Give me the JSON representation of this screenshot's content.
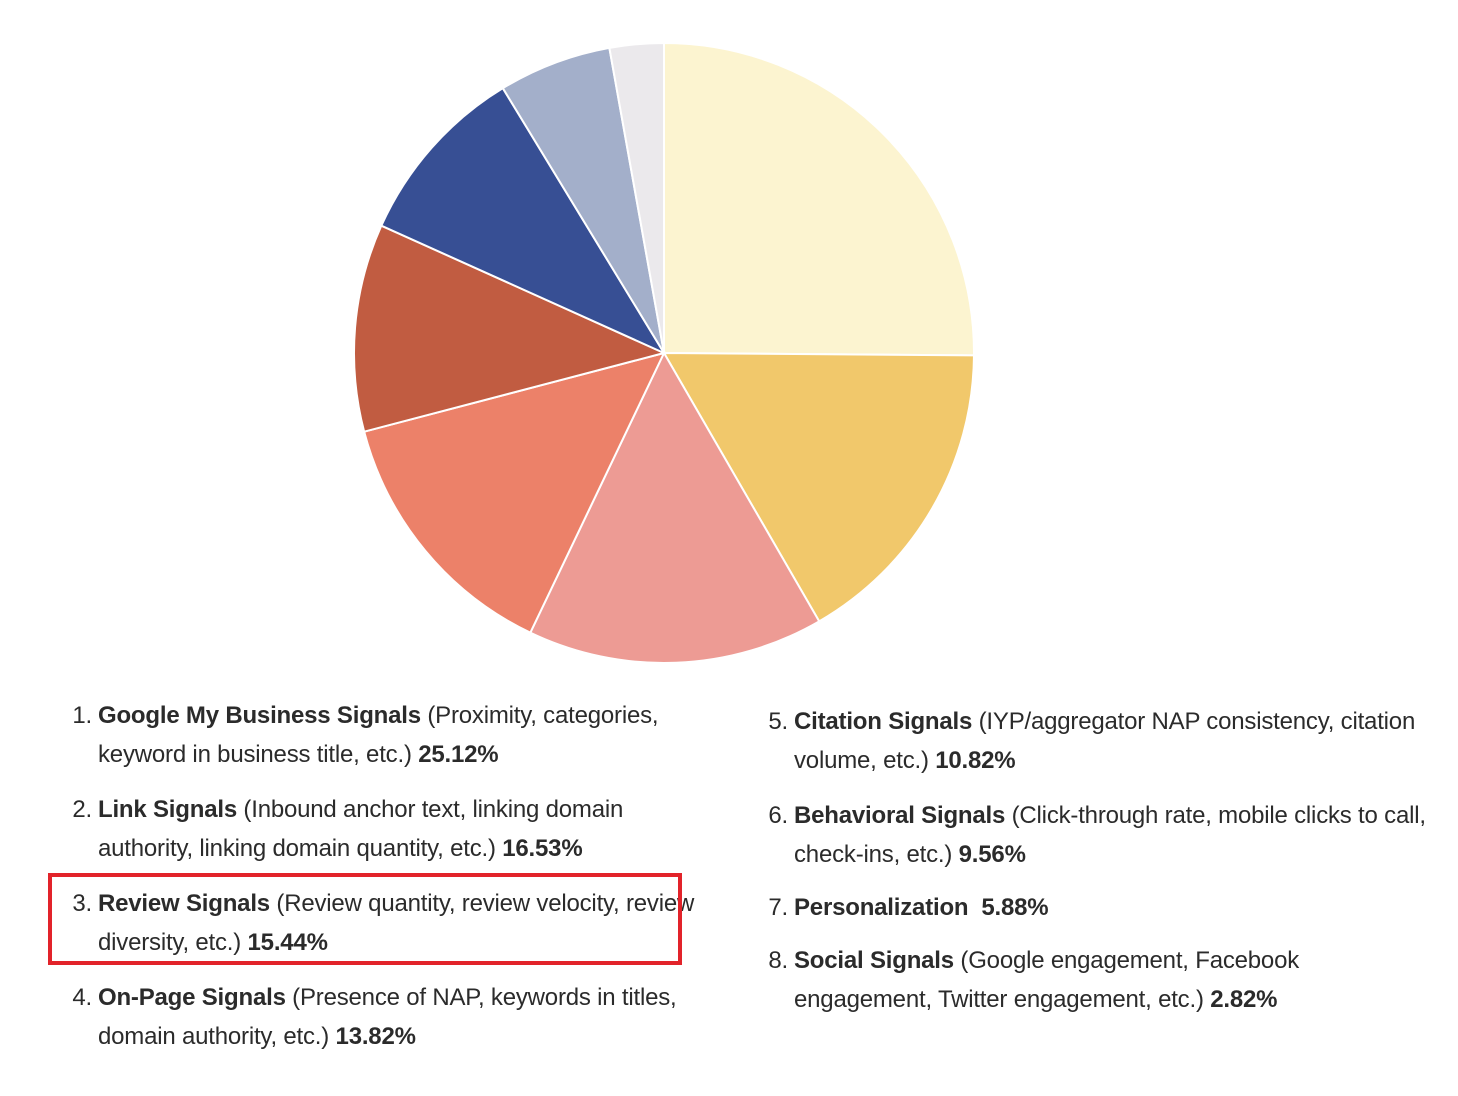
{
  "chart_data": {
    "type": "pie",
    "title": "",
    "start": "12 o'clock",
    "direction": "clockwise",
    "slices": [
      {
        "label": "Google My Business Signals",
        "value": 25.12,
        "color": "#fcf4d0"
      },
      {
        "label": "Link Signals",
        "value": 16.53,
        "color": "#f1c86b"
      },
      {
        "label": "Review Signals",
        "value": 15.44,
        "color": "#ed9b94"
      },
      {
        "label": "On-Page Signals",
        "value": 13.82,
        "color": "#ec8169"
      },
      {
        "label": "Citation Signals",
        "value": 10.82,
        "color": "#c15c41"
      },
      {
        "label": "Behavioral Signals",
        "value": 9.56,
        "color": "#374f94"
      },
      {
        "label": "Personalization",
        "value": 5.88,
        "color": "#a3afca"
      },
      {
        "label": "Social Signals",
        "value": 2.82,
        "color": "#ebe9ec"
      }
    ]
  },
  "legend": {
    "items": [
      {
        "num": "1.",
        "name": "Google My Business Signals",
        "desc": " (Proximity, categories, keyword in business title, etc.) ",
        "value": "25.12%"
      },
      {
        "num": "2.",
        "name": "Link Signals",
        "desc": " (Inbound anchor text, linking domain authority, linking domain quantity, etc.) ",
        "value": "16.53%"
      },
      {
        "num": "3.",
        "name": "Review Signals",
        "desc": " (Review quantity, review velocity, review diversity, etc.) ",
        "value": "15.44%"
      },
      {
        "num": "4.",
        "name": "On-Page Signals",
        "desc": " (Presence of NAP, keywords in titles, domain authority, etc.) ",
        "value": "13.82%"
      },
      {
        "num": "5.",
        "name": "Citation Signals",
        "desc": " (IYP/aggregator NAP consistency, citation volume, etc.) ",
        "value": "10.82%"
      },
      {
        "num": "6.",
        "name": "Behavioral Signals",
        "desc": " (Click-through rate, mobile clicks to call, check-ins, etc.) ",
        "value": "9.56%"
      },
      {
        "num": "7.",
        "name": "Personalization",
        "desc": "  ",
        "value": "5.88%"
      },
      {
        "num": "8.",
        "name": "Social Signals",
        "desc": " (Google engagement, Facebook engagement, Twitter engagement, etc.) ",
        "value": "2.82%"
      }
    ]
  },
  "highlight": {
    "item": 3,
    "color": "#e2232a"
  }
}
